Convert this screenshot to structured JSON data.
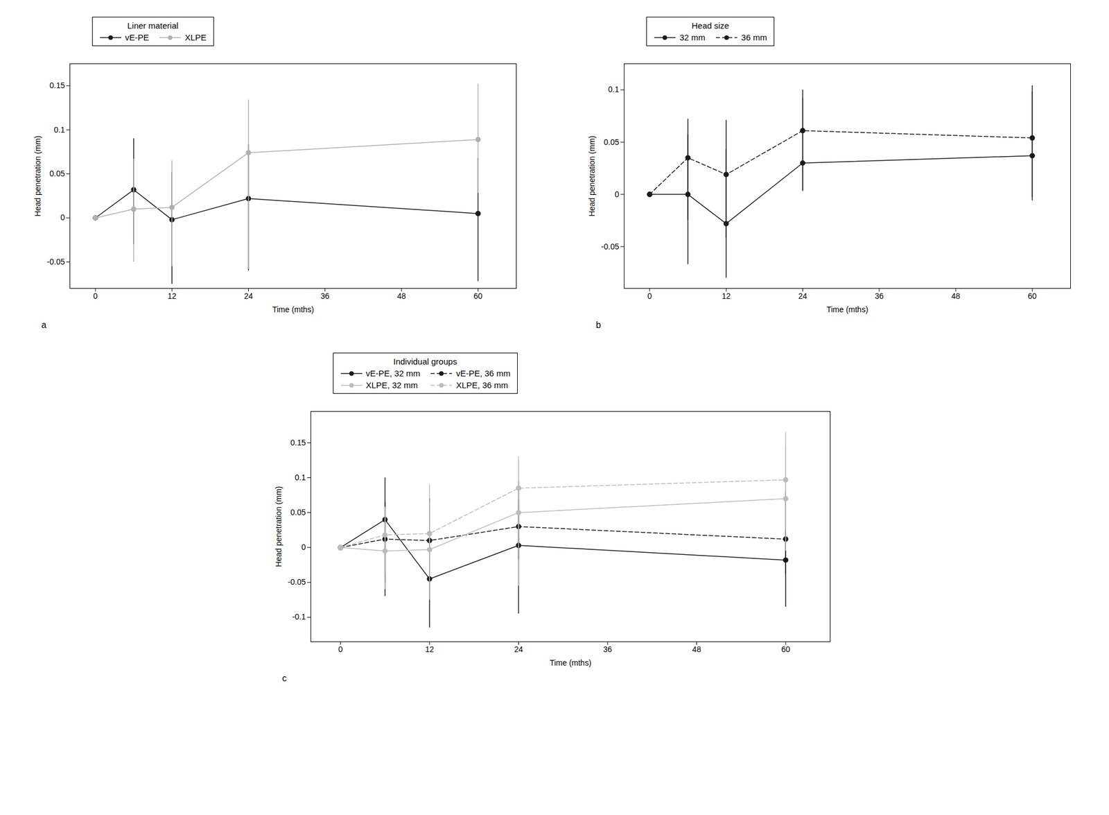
{
  "chart_data": [
    {
      "type": "line",
      "legend": "top",
      "legend_title": "Liner material",
      "annotations": [
        "a"
      ],
      "xlabel": "Time (mths)",
      "ylabel": "Head penetration (mm)",
      "x": [
        0,
        6,
        12,
        24,
        60
      ],
      "xlim": [
        -4,
        66
      ],
      "xticks": [
        0,
        12,
        24,
        36,
        48,
        60
      ],
      "ylim": [
        -0.08,
        0.175
      ],
      "yticks": [
        -0.05,
        0,
        0.05,
        0.1,
        0.15
      ],
      "series": [
        {
          "name": "vE-PE",
          "color": "#1a1a1a",
          "line_style": "solid",
          "marker": "o",
          "values": [
            0.0,
            0.032,
            -0.002,
            0.022,
            0.005
          ],
          "ci_lower": [
            0.0,
            -0.03,
            -0.075,
            -0.06,
            -0.072
          ],
          "ci_upper": [
            0.0,
            0.09,
            0.052,
            0.083,
            0.068
          ]
        },
        {
          "name": "XLPE",
          "color": "#b0b0b0",
          "line_style": "solid",
          "marker": "o",
          "values": [
            0.0,
            0.01,
            0.012,
            0.074,
            0.089
          ],
          "ci_lower": [
            0.0,
            -0.05,
            -0.055,
            -0.058,
            0.028
          ],
          "ci_upper": [
            0.0,
            0.067,
            0.065,
            0.134,
            0.152
          ]
        }
      ]
    },
    {
      "type": "line",
      "legend": "top",
      "legend_title": "Head size",
      "annotations": [
        "b"
      ],
      "xlabel": "Time (mths)",
      "ylabel": "Head penetration (mm)",
      "x": [
        0,
        6,
        12,
        24,
        60
      ],
      "xlim": [
        -4,
        66
      ],
      "xticks": [
        0,
        12,
        24,
        36,
        48,
        60
      ],
      "ylim": [
        -0.09,
        0.125
      ],
      "yticks": [
        -0.05,
        0,
        0.05,
        0.1
      ],
      "series": [
        {
          "name": "32 mm",
          "color": "#1a1a1a",
          "line_style": "solid",
          "marker": "o",
          "values": [
            0.0,
            0.0,
            -0.028,
            0.03,
            0.037
          ],
          "ci_lower": [
            0.0,
            -0.067,
            -0.08,
            0.003,
            -0.003
          ],
          "ci_upper": [
            0.0,
            0.057,
            0.043,
            0.092,
            0.098
          ]
        },
        {
          "name": "36 mm",
          "color": "#1a1a1a",
          "line_style": "dashed",
          "marker": "o",
          "values": [
            0.0,
            0.035,
            0.019,
            0.061,
            0.054
          ],
          "ci_lower": [
            0.0,
            -0.025,
            -0.042,
            0.004,
            -0.006
          ],
          "ci_upper": [
            0.0,
            0.072,
            0.071,
            0.1,
            0.104
          ]
        }
      ]
    },
    {
      "type": "line",
      "legend": "top",
      "legend_title": "Individual groups",
      "annotations": [
        "c"
      ],
      "xlabel": "Time (mths)",
      "ylabel": "Head penetration (mm)",
      "x": [
        0,
        6,
        12,
        24,
        60
      ],
      "xlim": [
        -4,
        66
      ],
      "xticks": [
        0,
        12,
        24,
        36,
        48,
        60
      ],
      "ylim": [
        -0.135,
        0.195
      ],
      "yticks": [
        -0.1,
        -0.05,
        0,
        0.05,
        0.1,
        0.15
      ],
      "series": [
        {
          "name": "vE-PE, 32 mm",
          "color": "#1a1a1a",
          "line_style": "solid",
          "marker": "o",
          "values": [
            0.0,
            0.04,
            -0.045,
            0.003,
            -0.018
          ],
          "ci_lower": [
            0.0,
            -0.07,
            -0.115,
            -0.095,
            -0.085
          ],
          "ci_upper": [
            0.0,
            0.1,
            0.07,
            0.095,
            0.08
          ]
        },
        {
          "name": "vE-PE, 36 mm",
          "color": "#1a1a1a",
          "line_style": "dashed",
          "marker": "o",
          "values": [
            0.0,
            0.012,
            0.01,
            0.03,
            0.012
          ],
          "ci_lower": [
            0.0,
            -0.05,
            -0.035,
            -0.018,
            -0.038
          ],
          "ci_upper": [
            0.0,
            0.065,
            0.06,
            0.068,
            0.068
          ]
        },
        {
          "name": "XLPE, 32 mm",
          "color": "#bbbbbb",
          "line_style": "solid",
          "marker": "o",
          "values": [
            0.0,
            -0.005,
            -0.003,
            0.05,
            0.07
          ],
          "ci_lower": [
            0.0,
            -0.06,
            -0.075,
            -0.055,
            -0.005
          ],
          "ci_upper": [
            0.0,
            0.055,
            0.065,
            0.125,
            0.145
          ]
        },
        {
          "name": "XLPE, 36 mm",
          "color": "#bbbbbb",
          "line_style": "dashed",
          "marker": "o",
          "values": [
            0.0,
            0.018,
            0.02,
            0.085,
            0.097
          ],
          "ci_lower": [
            0.0,
            -0.04,
            -0.04,
            0.012,
            0.025
          ],
          "ci_upper": [
            0.0,
            0.058,
            0.09,
            0.13,
            0.165
          ]
        }
      ]
    }
  ]
}
